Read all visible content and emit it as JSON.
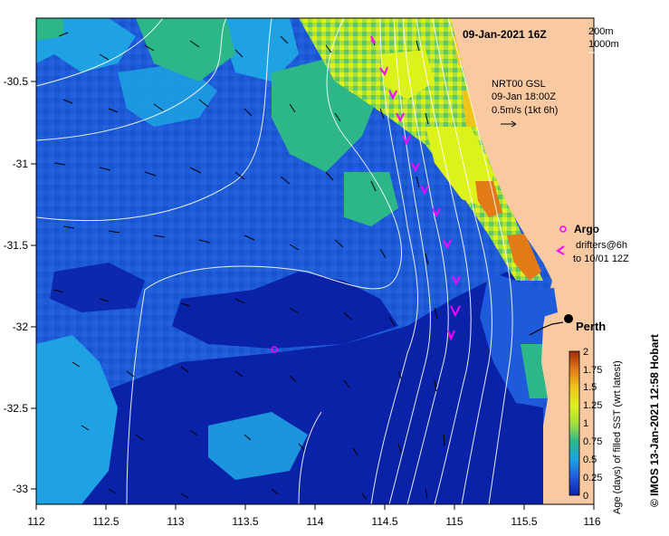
{
  "map": {
    "date_title": "09-Jan-2021 16Z",
    "depth_legend": [
      "200m",
      "1000m"
    ],
    "current_info": [
      "NRT00 GSL",
      "09-Jan 18:00Z",
      "0.5m/s (1kt 6h)"
    ],
    "argo_label": "Argo",
    "drifters_label": [
      "drifters@6h",
      "to 10/01 12Z"
    ],
    "city_label": "Perth",
    "x_ticks": [
      "112",
      "112.5",
      "113",
      "113.5",
      "114",
      "114.5",
      "115",
      "115.5",
      "116"
    ],
    "y_ticks": [
      "-30.5",
      "-31",
      "-31.5",
      "-32",
      "-32.5",
      "-33"
    ],
    "colorbar_title": "Age (days) of filled SST (wrt latest)",
    "colorbar_ticks": [
      "0",
      "0.25",
      "0.5",
      "0.75",
      "1",
      "1.25",
      "1.5",
      "1.75",
      "2"
    ],
    "credit": "© IMOS 13-Jan-2021 12:58 Hobart",
    "colors": {
      "land": "#F9C9A1",
      "age_0": "#0A22A8",
      "age_0_25": "#1E5BDB",
      "age_0_5": "#1FA2E3",
      "age_0_75": "#2DB789",
      "age_1": "#A7E03A",
      "age_1_25": "#DDF11B",
      "age_1_5": "#F1C41A",
      "age_1_75": "#E27A17",
      "age_2": "#A02C0A",
      "drifter": "#FF00FF",
      "contour": "#FFFFFF"
    }
  }
}
